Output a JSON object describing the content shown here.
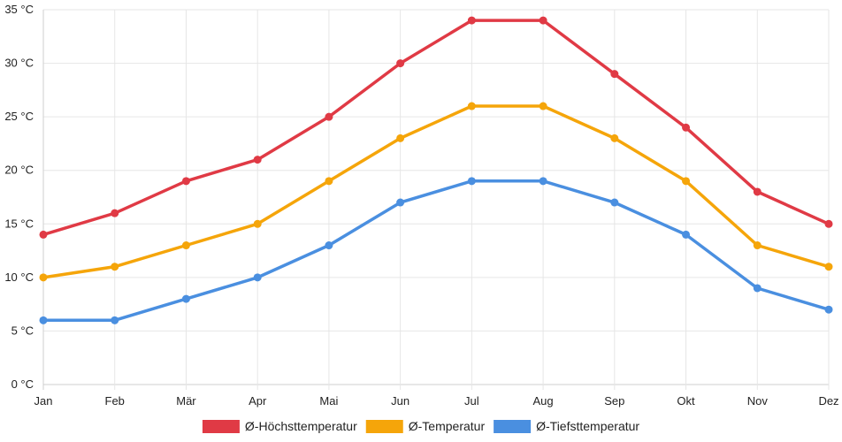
{
  "chart_data": {
    "type": "line",
    "categories": [
      "Jan",
      "Feb",
      "Mär",
      "Apr",
      "Mai",
      "Jun",
      "Jul",
      "Aug",
      "Sep",
      "Okt",
      "Nov",
      "Dez"
    ],
    "series": [
      {
        "name": "Ø-Höchsttemperatur",
        "color": "#e03a45",
        "values": [
          14,
          16,
          19,
          21,
          25,
          30,
          34,
          34,
          29,
          24,
          18,
          15
        ]
      },
      {
        "name": "Ø-Temperatur",
        "color": "#f5a50a",
        "values": [
          10,
          11,
          13,
          15,
          19,
          23,
          26,
          26,
          23,
          19,
          13,
          11
        ]
      },
      {
        "name": "Ø-Tiefsttemperatur",
        "color": "#4a8fe0",
        "values": [
          6,
          6,
          8,
          10,
          13,
          17,
          19,
          19,
          17,
          14,
          9,
          7
        ]
      }
    ],
    "y_ticks": [
      "0 °C",
      "5 °C",
      "10 °C",
      "15 °C",
      "20 °C",
      "25 °C",
      "30 °C",
      "35 °C"
    ],
    "y_tick_values": [
      0,
      5,
      10,
      15,
      20,
      25,
      30,
      35
    ],
    "ylim": [
      0,
      35
    ],
    "grid": true,
    "legend_position": "bottom"
  }
}
